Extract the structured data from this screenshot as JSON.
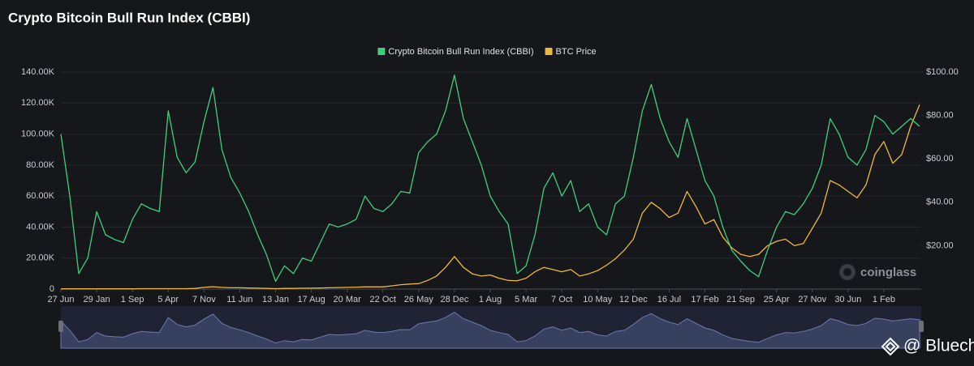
{
  "chart_data": {
    "type": "line",
    "title": "Crypto Bitcoin Bull Run Index (CBBI)",
    "categories": [
      "27 Jun",
      null,
      null,
      null,
      "29 Jan",
      null,
      null,
      null,
      "1 Sep",
      null,
      null,
      null,
      "5 Apr",
      null,
      null,
      null,
      "7 Nov",
      null,
      null,
      null,
      "11 Jun",
      null,
      null,
      null,
      "13 Jan",
      null,
      null,
      null,
      "17 Aug",
      null,
      null,
      null,
      "20 Mar",
      null,
      null,
      null,
      "22 Oct",
      null,
      null,
      null,
      "26 May",
      null,
      null,
      null,
      "28 Dec",
      null,
      null,
      null,
      "1 Aug",
      null,
      null,
      null,
      "5 Mar",
      null,
      null,
      null,
      "7 Oct",
      null,
      null,
      null,
      "10 May",
      null,
      null,
      null,
      "12 Dec",
      null,
      null,
      null,
      "16 Jul",
      null,
      null,
      null,
      "17 Feb",
      null,
      null,
      null,
      "21 Sep",
      null,
      null,
      null,
      "25 Apr",
      null,
      null,
      null,
      "27 Nov",
      null,
      null,
      null,
      "30 Jun",
      null,
      null,
      null,
      "1 Feb",
      null,
      null,
      null,
      null
    ],
    "series": [
      {
        "name": "Crypto Bitcoin Bull Run Index (CBBI)",
        "color": "#3dcf7c",
        "values": [
          100000,
          60000,
          10000,
          20000,
          50000,
          35000,
          32000,
          30000,
          45000,
          55000,
          52000,
          50000,
          115000,
          85000,
          75000,
          82000,
          108000,
          130000,
          90000,
          72000,
          62000,
          50000,
          35000,
          22000,
          5000,
          15000,
          10000,
          20000,
          18000,
          30000,
          42000,
          40000,
          42000,
          45000,
          60000,
          52000,
          50000,
          55000,
          63000,
          62000,
          88000,
          95000,
          100000,
          115000,
          138000,
          110000,
          95000,
          80000,
          60000,
          50000,
          42000,
          10000,
          15000,
          35000,
          65000,
          75000,
          60000,
          70000,
          50000,
          55000,
          40000,
          35000,
          55000,
          60000,
          85000,
          115000,
          132000,
          110000,
          95000,
          85000,
          110000,
          90000,
          70000,
          60000,
          40000,
          25000,
          18000,
          12000,
          8000,
          25000,
          40000,
          50000,
          48000,
          55000,
          65000,
          80000,
          110000,
          100000,
          85000,
          80000,
          90000,
          112000,
          108000,
          100000,
          105000,
          110000,
          105000
        ]
      },
      {
        "name": "BTC Price",
        "color": "#f0b83a",
        "axis": "y2",
        "values": [
          0.1,
          0.1,
          0.1,
          0.1,
          0.1,
          0.1,
          0.1,
          0.1,
          0.1,
          0.2,
          0.2,
          0.2,
          0.2,
          0.2,
          0.2,
          0.3,
          0.8,
          1.1,
          0.8,
          0.6,
          0.6,
          0.5,
          0.4,
          0.3,
          0.2,
          0.3,
          0.3,
          0.4,
          0.4,
          0.5,
          0.6,
          0.7,
          0.8,
          0.9,
          1,
          1,
          1,
          1.5,
          2,
          2.3,
          2.5,
          4,
          6,
          10,
          15,
          10,
          7,
          6,
          6.5,
          5,
          4,
          3.8,
          5,
          8,
          10,
          9,
          8,
          9,
          6,
          7,
          8.5,
          11,
          14,
          18,
          23,
          35,
          40,
          37,
          33,
          35,
          45,
          38,
          30,
          32,
          24,
          19,
          16,
          15,
          16,
          20,
          22,
          23,
          20,
          21,
          28,
          35,
          50,
          48,
          45,
          42,
          48,
          62,
          68,
          58,
          62,
          75,
          85
        ]
      }
    ],
    "ylim": [
      0,
      140000
    ],
    "yticks": [
      0,
      {
        "value": 20000,
        "label": "20.00K"
      },
      {
        "value": 40000,
        "label": "40.00K"
      },
      {
        "value": 60000,
        "label": "60.00K"
      },
      {
        "value": 80000,
        "label": "80.00K"
      },
      {
        "value": 100000,
        "label": "100.00K"
      },
      {
        "value": 120000,
        "label": "120.00K"
      },
      {
        "value": 140000,
        "label": "140.00K"
      }
    ],
    "y2lim": [
      0,
      100
    ],
    "y2ticks": [
      {
        "value": 20,
        "label": "$20.00"
      },
      {
        "value": 40,
        "label": "$40.00"
      },
      {
        "value": 60,
        "label": "$60.00"
      },
      {
        "value": 80,
        "label": "$80.00"
      },
      {
        "value": 100,
        "label": "$100.00"
      }
    ],
    "grid": true,
    "legend": "top",
    "annotations": [
      "coinglass",
      "@ Bluechip"
    ]
  }
}
